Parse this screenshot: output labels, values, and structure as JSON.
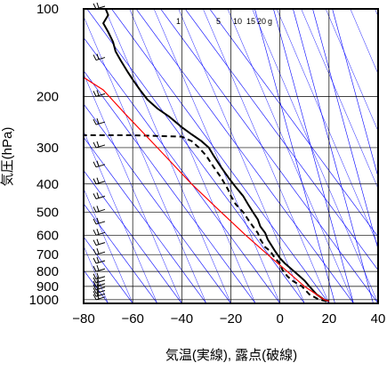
{
  "chart_data": {
    "type": "line",
    "xlabel": "気温(実線), 露点(破線)",
    "ylabel": "気圧(hPa)",
    "xlim": [
      -80,
      40
    ],
    "ylim": [
      1030,
      100
    ],
    "y_scale": "log",
    "grid": true,
    "x_ticks": [
      "−80",
      "−60",
      "−40",
      "−20",
      "0",
      "20",
      "40"
    ],
    "x_tick_values": [
      -80,
      -60,
      -40,
      -20,
      0,
      20,
      40
    ],
    "y_ticks": [
      "100",
      "200",
      "300",
      "400",
      "500",
      "600",
      "700",
      "800",
      "900",
      "1000"
    ],
    "y_tick_values": [
      100,
      200,
      300,
      400,
      500,
      600,
      700,
      800,
      900,
      1000
    ],
    "mixing_ratio_labels": [
      "1",
      "5",
      "10",
      "15",
      "20",
      "g"
    ],
    "mixing_ratio_values": [
      1,
      5,
      10,
      15,
      20
    ],
    "colors": {
      "temperature": "#000000",
      "dewpoint": "#000000",
      "parcel": "#ff0000",
      "reference_lines": "#0000ff",
      "grid": "#000000"
    },
    "series": [
      {
        "style": "solid",
        "points": [
          [
            20,
            1013
          ],
          [
            18,
            1000
          ],
          [
            15,
            960
          ],
          [
            12,
            900
          ],
          [
            10,
            860
          ],
          [
            8,
            830
          ],
          [
            5,
            790
          ],
          [
            2,
            750
          ],
          [
            0,
            720
          ],
          [
            -1,
            700
          ],
          [
            -2,
            680
          ],
          [
            -3,
            660
          ],
          [
            -5,
            620
          ],
          [
            -6,
            590
          ],
          [
            -8,
            560
          ],
          [
            -9,
            530
          ],
          [
            -11,
            500
          ],
          [
            -13,
            470
          ],
          [
            -15,
            440
          ],
          [
            -18,
            410
          ],
          [
            -21,
            380
          ],
          [
            -24,
            350
          ],
          [
            -27,
            320
          ],
          [
            -29,
            300
          ],
          [
            -32,
            285
          ],
          [
            -36,
            270
          ],
          [
            -40,
            255
          ],
          [
            -45,
            235
          ],
          [
            -50,
            220
          ],
          [
            -54,
            205
          ],
          [
            -57,
            190
          ],
          [
            -60,
            175
          ],
          [
            -62,
            165
          ],
          [
            -65,
            150
          ],
          [
            -67,
            140
          ],
          [
            -68,
            130
          ],
          [
            -70,
            120
          ],
          [
            -72,
            112
          ],
          [
            -70,
            105
          ],
          [
            -71,
            100
          ]
        ]
      },
      {
        "style": "dashed",
        "points": [
          [
            19,
            1013
          ],
          [
            16,
            1000
          ],
          [
            12,
            960
          ],
          [
            9,
            900
          ],
          [
            5,
            860
          ],
          [
            3,
            830
          ],
          [
            1,
            790
          ],
          [
            0,
            750
          ],
          [
            -2,
            720
          ],
          [
            -3,
            700
          ],
          [
            -4,
            680
          ],
          [
            -6,
            660
          ],
          [
            -8,
            620
          ],
          [
            -9,
            590
          ],
          [
            -11,
            560
          ],
          [
            -13,
            530
          ],
          [
            -15,
            500
          ],
          [
            -18,
            470
          ],
          [
            -20,
            440
          ],
          [
            -21,
            420
          ],
          [
            -24,
            380
          ],
          [
            -27,
            350
          ],
          [
            -30,
            320
          ],
          [
            -33,
            300
          ],
          [
            -36,
            285
          ],
          [
            -40,
            275
          ],
          [
            -60,
            272
          ],
          [
            -80,
            272
          ]
        ]
      },
      {
        "style": "red",
        "points": [
          [
            20,
            1013
          ],
          [
            18,
            1000
          ],
          [
            10,
            900
          ],
          [
            3,
            800
          ],
          [
            -5,
            700
          ],
          [
            -14,
            600
          ],
          [
            -24,
            500
          ],
          [
            -36,
            400
          ],
          [
            -50,
            300
          ],
          [
            -63,
            230
          ],
          [
            -72,
            190
          ],
          [
            -80,
            172
          ]
        ]
      }
    ],
    "wind_barbs": [
      {
        "p": 1000
      },
      {
        "p": 975
      },
      {
        "p": 950
      },
      {
        "p": 925
      },
      {
        "p": 900
      },
      {
        "p": 875
      },
      {
        "p": 850
      },
      {
        "p": 800
      },
      {
        "p": 750
      },
      {
        "p": 700
      },
      {
        "p": 650
      },
      {
        "p": 600
      },
      {
        "p": 550
      },
      {
        "p": 500
      },
      {
        "p": 450
      },
      {
        "p": 400
      },
      {
        "p": 350
      },
      {
        "p": 300
      },
      {
        "p": 250
      },
      {
        "p": 200
      },
      {
        "p": 150
      },
      {
        "p": 100
      }
    ]
  }
}
